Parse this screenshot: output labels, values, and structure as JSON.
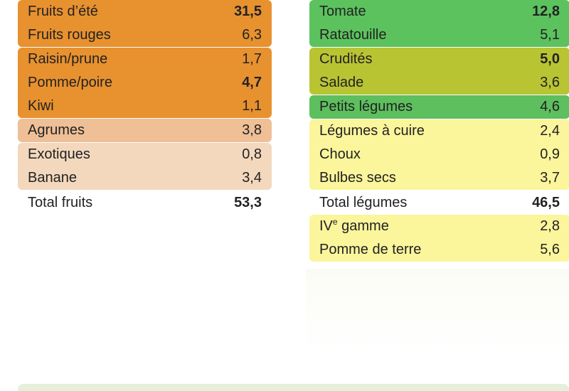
{
  "fruits": {
    "rows": [
      {
        "label": "Fruits d’été",
        "value": "31,5"
      },
      {
        "label": "Fruits rouges",
        "value": "6,3"
      },
      {
        "label": "Raisin/prune",
        "value": "1,7"
      },
      {
        "label": "Pomme/poire",
        "value": "4,7"
      },
      {
        "label": "Kiwi",
        "value": "1,1"
      },
      {
        "label": "Agrumes",
        "value": "3,8"
      },
      {
        "label": "Exotiques",
        "value": "0,8"
      },
      {
        "label": "Banane",
        "value": "3,4"
      }
    ],
    "total": {
      "label": "Total fruits",
      "value": "53,3"
    }
  },
  "vegetables": {
    "rows": [
      {
        "label": "Tomate",
        "value": "12,8"
      },
      {
        "label": "Ratatouille",
        "value": "5,1"
      },
      {
        "label": "Crudités",
        "value": "5,0"
      },
      {
        "label": "Salade",
        "value": "3,6"
      },
      {
        "label": "Petits légumes",
        "value": "4,6"
      },
      {
        "label": "Légumes à cuire",
        "value": "2,4"
      },
      {
        "label": "Choux",
        "value": "0,9"
      },
      {
        "label": "Bulbes secs",
        "value": "3,7"
      }
    ],
    "total": {
      "label": "Total légumes",
      "value": "46,5"
    },
    "extra": [
      {
        "label_main": "IV",
        "label_sup": "e",
        "label_rest": " gamme",
        "value": "2,8"
      },
      {
        "label": "Pomme de terre",
        "value": "5,6"
      }
    ]
  },
  "colors": {
    "orange": "#e8912f",
    "light_orange": "#eba25f",
    "peach": "#efbf96",
    "beige": "#f3d8bd",
    "green": "#5cc25e",
    "olive": "#b9c433",
    "yellow": "#fbf59c"
  }
}
